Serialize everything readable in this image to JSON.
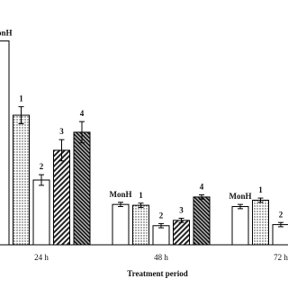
{
  "chart_data": {
    "type": "bar",
    "categories": [
      "24 h",
      "48 h",
      "72 h"
    ],
    "x_label": "Treatment period",
    "ylim": [
      0,
      100
    ],
    "series": [
      {
        "name": "MonH",
        "color": "#ffffff",
        "values": [
          96,
          19,
          18
        ],
        "errors": [
          null,
          1,
          1
        ]
      },
      {
        "name": "1",
        "color": "#dddddd",
        "values": [
          61,
          18.6,
          21
        ],
        "errors": [
          4,
          1,
          1
        ]
      },
      {
        "name": "2",
        "color": "#ffffff",
        "values": [
          30.5,
          9,
          9.5
        ],
        "errors": [
          2.5,
          1,
          1
        ]
      },
      {
        "name": "3",
        "color": "#666666",
        "values": [
          44.5,
          11.5,
          null
        ],
        "errors": [
          5,
          1,
          null
        ]
      },
      {
        "name": "4",
        "color": "#333333",
        "values": [
          53,
          22.5,
          null
        ],
        "errors": [
          5,
          1,
          null
        ]
      }
    ]
  }
}
